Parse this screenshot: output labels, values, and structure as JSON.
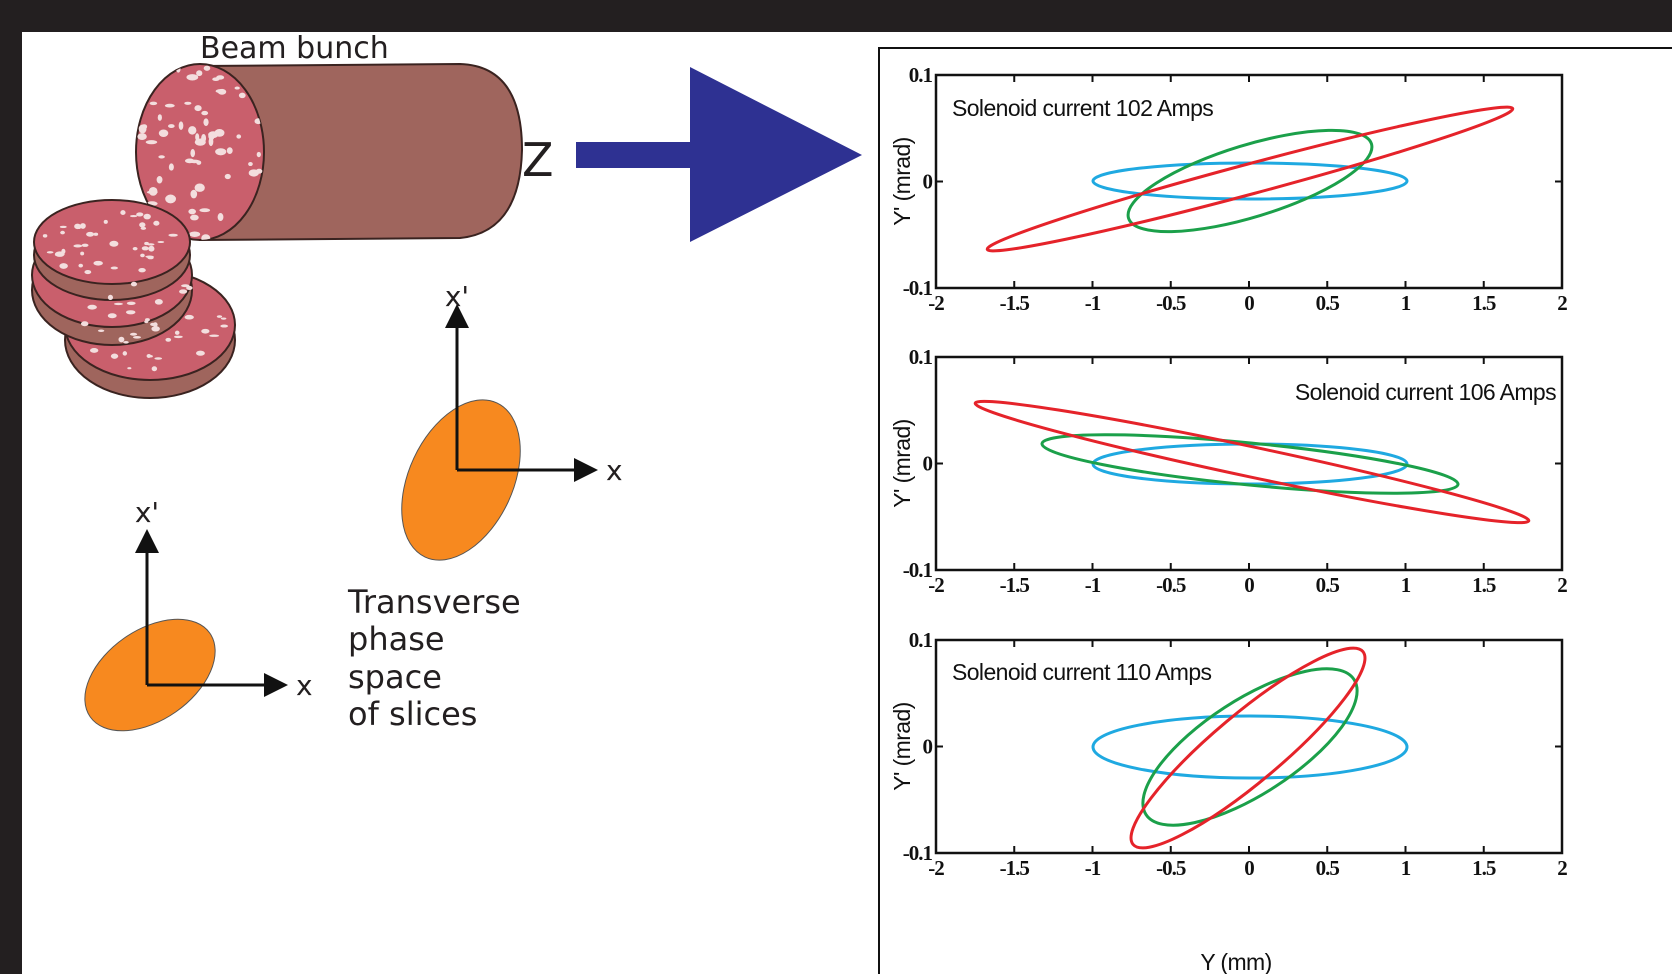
{
  "left": {
    "title": "Beam bunch",
    "z_label": "Z",
    "axes": [
      {
        "y_label": "x'",
        "x_label": "x"
      },
      {
        "y_label": "x'",
        "x_label": "x"
      }
    ],
    "caption": [
      "Transverse",
      "phase",
      "space",
      "of slices"
    ]
  },
  "plots": {
    "xlim": [
      -2,
      2
    ],
    "ylim": [
      -0.1,
      0.1
    ],
    "xticks": [
      -2,
      -1.5,
      -1,
      -0.5,
      0,
      0.5,
      1,
      1.5,
      2
    ],
    "yticks": [
      -0.1,
      0,
      0.1
    ],
    "y_label": "Y' (mrad)",
    "x_label": "Y (mm)",
    "panels": [
      {
        "title": "Solenoid current 102 Amps"
      },
      {
        "title": "Solenoid current 106 Amps"
      },
      {
        "title": "Solenoid current 110 Amps"
      }
    ]
  }
}
